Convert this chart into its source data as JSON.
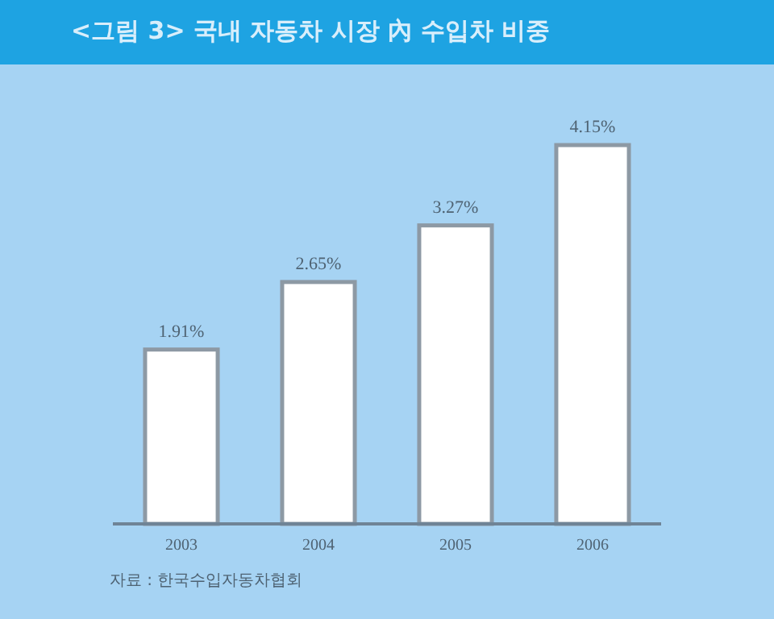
{
  "chart_data": {
    "type": "bar",
    "title": "<그림 3> 국내 자동차 시장 內 수입차 비중",
    "categories": [
      "2003",
      "2004",
      "2005",
      "2006"
    ],
    "values": [
      1.91,
      2.65,
      3.27,
      4.15
    ],
    "value_labels": [
      "1.91%",
      "2.65%",
      "3.27%",
      "4.15%"
    ],
    "color": "#ffffff",
    "annotations": [
      "자료 : 한국수입자동차협회"
    ]
  }
}
